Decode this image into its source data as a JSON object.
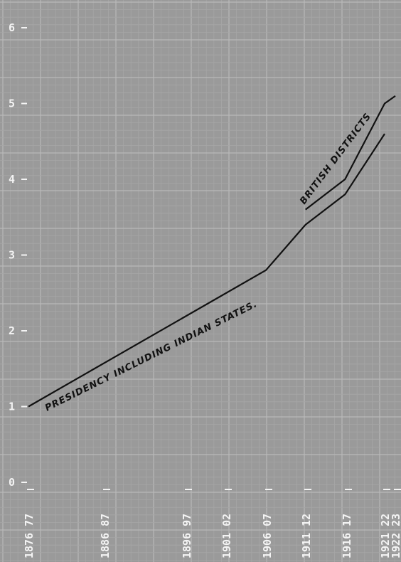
{
  "chart_data": {
    "type": "line",
    "title": "",
    "xlabel": "",
    "ylabel": "",
    "ylim": [
      0,
      6
    ],
    "grid": true,
    "y_ticks": [
      "0",
      "1",
      "2",
      "3",
      "4",
      "5",
      "6"
    ],
    "x_tick_labels": [
      "1876  77",
      "1886  87",
      "1896  97",
      "1901  02",
      "1906  07",
      "1911  12",
      "1916  17",
      "1921  22",
      "1922  23"
    ],
    "series": [
      {
        "name": "PRESIDENCY INCLUDING INDIAN STATES.",
        "points": [
          {
            "x": 1876,
            "y": 1.0
          },
          {
            "x": 1906,
            "y": 2.8
          },
          {
            "x": 1911,
            "y": 3.4
          },
          {
            "x": 1916,
            "y": 3.8
          },
          {
            "x": 1921,
            "y": 4.6
          }
        ]
      },
      {
        "name": "BRITISH DISTRICTS",
        "points": [
          {
            "x": 1911,
            "y": 3.6
          },
          {
            "x": 1916,
            "y": 4.0
          },
          {
            "x": 1921,
            "y": 5.0
          },
          {
            "x": 1922,
            "y": 5.1
          }
        ]
      }
    ]
  },
  "colors": {
    "background": "#9a9a9a",
    "grid": "#b6b6b6",
    "line": "#111111",
    "label": "#f4f4f4"
  }
}
